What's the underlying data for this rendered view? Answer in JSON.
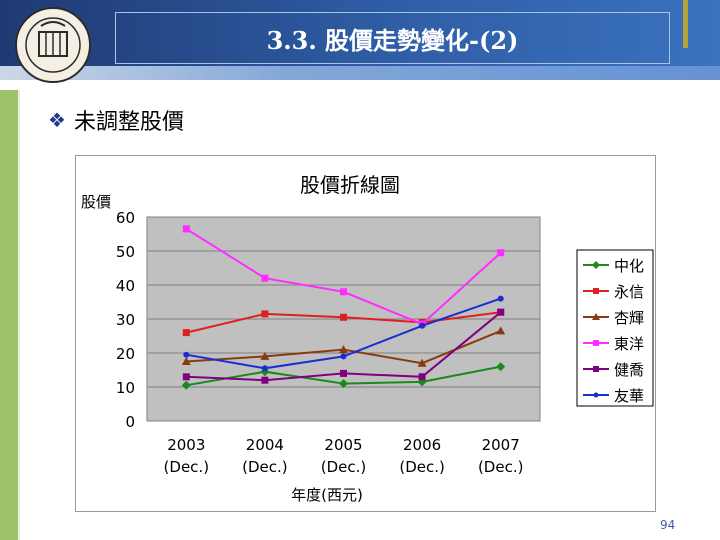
{
  "header": {
    "title": "3.3. 股價走勢變化-(2)"
  },
  "bullet_text": "未調整股價",
  "page_number": "94",
  "chart_data": {
    "type": "line",
    "title": "股價折線圖",
    "ylabel": "股價",
    "xlabel": "年度(西元)",
    "ylim": [
      0,
      60
    ],
    "yticks": [
      "0",
      "10",
      "20",
      "30",
      "40",
      "50",
      "60"
    ],
    "categories": [
      {
        "year": "2003",
        "note": "(Dec.)"
      },
      {
        "year": "2004",
        "note": "(Dec.)"
      },
      {
        "year": "2005",
        "note": "(Dec.)"
      },
      {
        "year": "2006",
        "note": "(Dec.)"
      },
      {
        "year": "2007",
        "note": "(Dec.)"
      }
    ],
    "legend_position": "right",
    "series": [
      {
        "name": "中化",
        "color": "#1a8a1a",
        "marker": "diamond",
        "values": [
          10.5,
          14.5,
          11,
          11.5,
          16
        ]
      },
      {
        "name": "永信",
        "color": "#e02020",
        "marker": "square",
        "values": [
          26,
          31.5,
          30.5,
          29,
          32
        ]
      },
      {
        "name": "杏輝",
        "color": "#8b3a10",
        "marker": "triangle",
        "values": [
          17.5,
          19,
          21,
          17,
          26.5
        ]
      },
      {
        "name": "東洋",
        "color": "#ff2cff",
        "marker": "square",
        "values": [
          56.5,
          42,
          38,
          28.5,
          49.5
        ]
      },
      {
        "name": "健喬",
        "color": "#800080",
        "marker": "square",
        "values": [
          13,
          12,
          14,
          13,
          32
        ]
      },
      {
        "name": "友華",
        "color": "#1a2ed0",
        "marker": "dot",
        "values": [
          19.5,
          15.5,
          19,
          28,
          36
        ]
      }
    ]
  }
}
